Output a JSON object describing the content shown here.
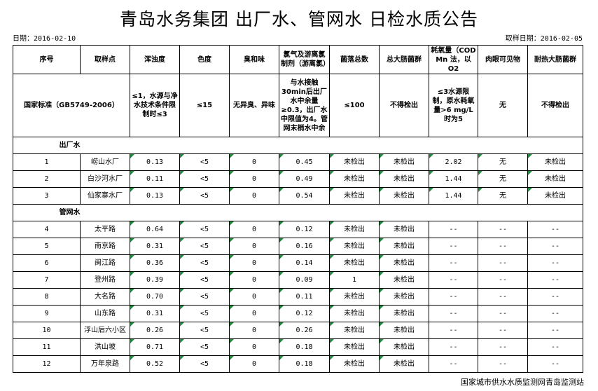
{
  "title": "青岛水务集团 出厂水、管网水 日检水质公告",
  "report_date": "日期：2016-02-10",
  "sample_date": "取样日期：2016-02-05",
  "headers": [
    "序号",
    "取样点",
    "浑浊度",
    "色度",
    "臭和味",
    "氯气及游离氯制剂（游离氯）",
    "菌落总数",
    "总大肠菌群",
    "耗氧量（COD Mn 法，以O2",
    "肉眼可见物",
    "耐热大肠菌群"
  ],
  "standard": {
    "label": "国家标准（GB5749-2006）",
    "values": [
      "≤1，水源与净水技术条件限制时≤3",
      "≤15",
      "无异臭、异味",
      "与水接触30min后出厂水中余量≥0.3，出厂水中限值为4。管网末梢水中余",
      "≤100",
      "不得检出",
      "≤3水源限制，原水耗氧量>6 mg/L时为5",
      "无",
      "不得检出"
    ]
  },
  "sections": [
    {
      "label": "出厂水",
      "rows": [
        [
          "1",
          "崂山水厂",
          "0.13",
          "<5",
          "0",
          "0.45",
          "未检出",
          "未检出",
          "2.02",
          "无",
          "未检出"
        ],
        [
          "2",
          "白沙河水厂",
          "0.11",
          "<5",
          "0",
          "0.49",
          "未检出",
          "未检出",
          "1.44",
          "无",
          "未检出"
        ],
        [
          "3",
          "仙家寨水厂",
          "0.13",
          "<5",
          "0",
          "0.54",
          "未检出",
          "未检出",
          "1.44",
          "无",
          "未检出"
        ]
      ]
    },
    {
      "label": "管网水",
      "rows": [
        [
          "4",
          "太平路",
          "0.64",
          "<5",
          "0",
          "0.12",
          "未检出",
          "未检出",
          "--",
          "--",
          "--"
        ],
        [
          "5",
          "南京路",
          "0.31",
          "<5",
          "0",
          "0.16",
          "未检出",
          "未检出",
          "--",
          "--",
          "--"
        ],
        [
          "6",
          "闽江路",
          "0.36",
          "<5",
          "0",
          "0.14",
          "未检出",
          "未检出",
          "--",
          "--",
          "--"
        ],
        [
          "7",
          "登州路",
          "0.39",
          "<5",
          "0",
          "0.09",
          "1",
          "未检出",
          "--",
          "--",
          "--"
        ],
        [
          "8",
          "大名路",
          "0.70",
          "<5",
          "0",
          "0.11",
          "未检出",
          "未检出",
          "--",
          "--",
          "--"
        ],
        [
          "9",
          "山东路",
          "0.31",
          "<5",
          "0",
          "0.12",
          "未检出",
          "未检出",
          "--",
          "--",
          "--"
        ],
        [
          "10",
          "浮山后六小区",
          "0.26",
          "<5",
          "0",
          "0.26",
          "未检出",
          "未检出",
          "--",
          "--",
          "--"
        ],
        [
          "11",
          "洪山坡",
          "0.71",
          "<5",
          "0",
          "0.18",
          "未检出",
          "未检出",
          "--",
          "--",
          "--"
        ],
        [
          "12",
          "万年泉路",
          "0.52",
          "<5",
          "0",
          "0.18",
          "未检出",
          "未检出",
          "--",
          "--",
          "--"
        ]
      ]
    }
  ],
  "footer": "国家城市供水水质监测网青岛监测站",
  "colors": {
    "comment_marker": "#1e8a3c"
  }
}
